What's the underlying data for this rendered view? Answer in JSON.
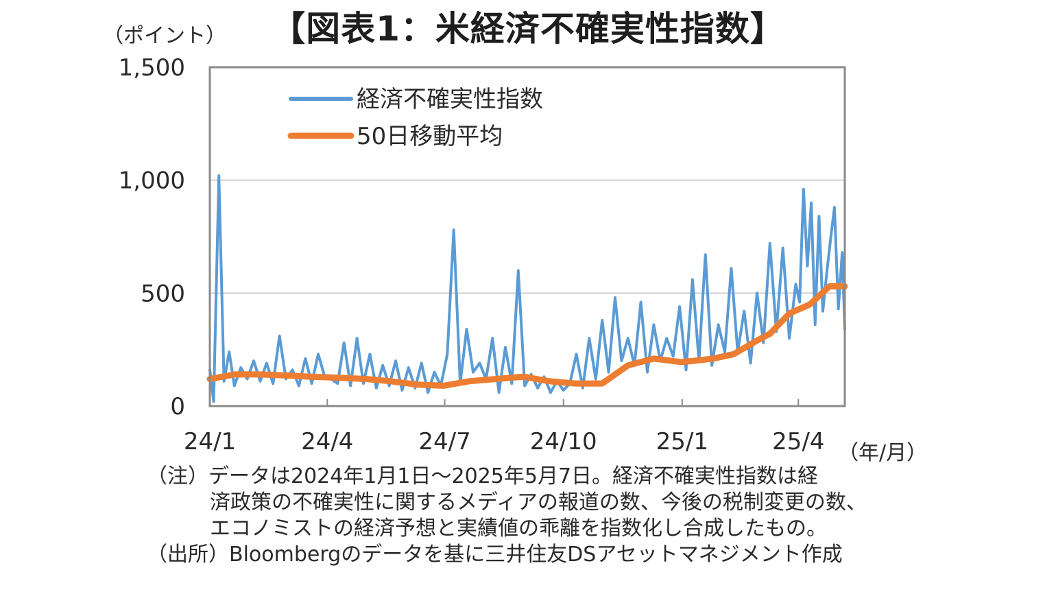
{
  "title": "【図表1：米経済不確実性指数】",
  "notes": {
    "line1": "（注）データは2024年1月1日～2025年5月7日。経済不確実性指数は経",
    "line2": "済政策の不確実性に関するメディアの報道の数、今後の税制変更の数、",
    "line3": "エコノミストの経済予想と実績値の乖離を指数化し合成したもの。",
    "line4": "（出所）Bloombergのデータを基に三井住友DSアセットマネジメント作成"
  },
  "chart_data": {
    "type": "line",
    "title": "【図表1：米経済不確実性指数】",
    "ylabel": "（ポイント）",
    "xlabel": "（年/月）",
    "ylim": [
      0,
      1500
    ],
    "yticks": [
      0,
      500,
      1000,
      1500
    ],
    "ytick_labels": [
      "0",
      "500",
      "1,000",
      "1,500"
    ],
    "x_range": [
      "2024-01-01",
      "2025-05-07"
    ],
    "xticks": [
      "2024-01-01",
      "2024-04-01",
      "2024-07-01",
      "2024-10-01",
      "2025-01-01",
      "2025-04-01"
    ],
    "xtick_labels": [
      "24/1",
      "24/4",
      "24/7",
      "24/10",
      "25/1",
      "25/4"
    ],
    "grid": "horizontal",
    "legend_position": "top-left",
    "series": [
      {
        "name": "経済不確実性指数",
        "color": "#5b9bd5",
        "x": [
          "2024-01-01",
          "2024-01-04",
          "2024-01-08",
          "2024-01-12",
          "2024-01-16",
          "2024-01-20",
          "2024-01-25",
          "2024-01-30",
          "2024-02-04",
          "2024-02-09",
          "2024-02-14",
          "2024-02-19",
          "2024-02-24",
          "2024-02-29",
          "2024-03-05",
          "2024-03-10",
          "2024-03-15",
          "2024-03-20",
          "2024-03-25",
          "2024-03-30",
          "2024-04-04",
          "2024-04-09",
          "2024-04-14",
          "2024-04-19",
          "2024-04-24",
          "2024-04-29",
          "2024-05-04",
          "2024-05-09",
          "2024-05-14",
          "2024-05-19",
          "2024-05-24",
          "2024-05-29",
          "2024-06-03",
          "2024-06-08",
          "2024-06-13",
          "2024-06-18",
          "2024-06-23",
          "2024-06-28",
          "2024-07-03",
          "2024-07-08",
          "2024-07-13",
          "2024-07-18",
          "2024-07-23",
          "2024-07-28",
          "2024-08-02",
          "2024-08-07",
          "2024-08-12",
          "2024-08-17",
          "2024-08-22",
          "2024-08-27",
          "2024-09-01",
          "2024-09-06",
          "2024-09-11",
          "2024-09-16",
          "2024-09-21",
          "2024-09-26",
          "2024-10-01",
          "2024-10-06",
          "2024-10-11",
          "2024-10-16",
          "2024-10-21",
          "2024-10-26",
          "2024-10-31",
          "2024-11-05",
          "2024-11-10",
          "2024-11-15",
          "2024-11-20",
          "2024-11-25",
          "2024-11-30",
          "2024-12-05",
          "2024-12-10",
          "2024-12-15",
          "2024-12-20",
          "2024-12-25",
          "2024-12-30",
          "2025-01-04",
          "2025-01-09",
          "2025-01-14",
          "2025-01-19",
          "2025-01-24",
          "2025-01-29",
          "2025-02-03",
          "2025-02-08",
          "2025-02-13",
          "2025-02-18",
          "2025-02-23",
          "2025-02-28",
          "2025-03-05",
          "2025-03-10",
          "2025-03-15",
          "2025-03-20",
          "2025-03-25",
          "2025-03-30",
          "2025-04-02",
          "2025-04-05",
          "2025-04-08",
          "2025-04-11",
          "2025-04-14",
          "2025-04-17",
          "2025-04-20",
          "2025-04-23",
          "2025-04-26",
          "2025-04-29",
          "2025-05-02",
          "2025-05-05",
          "2025-05-07"
        ],
        "values": [
          160,
          20,
          1020,
          110,
          240,
          90,
          170,
          120,
          200,
          110,
          190,
          100,
          310,
          120,
          160,
          90,
          210,
          100,
          230,
          130,
          120,
          100,
          280,
          90,
          300,
          100,
          230,
          80,
          180,
          90,
          200,
          70,
          170,
          80,
          190,
          60,
          150,
          90,
          230,
          780,
          100,
          340,
          150,
          190,
          120,
          300,
          60,
          260,
          100,
          600,
          90,
          140,
          80,
          130,
          60,
          110,
          70,
          100,
          230,
          80,
          300,
          120,
          380,
          150,
          480,
          200,
          300,
          180,
          460,
          150,
          360,
          200,
          300,
          220,
          440,
          160,
          560,
          200,
          670,
          180,
          360,
          240,
          610,
          240,
          420,
          190,
          500,
          280,
          720,
          330,
          700,
          300,
          540,
          460,
          960,
          620,
          900,
          360,
          840,
          420,
          590,
          740,
          880,
          430,
          680,
          340
        ]
      },
      {
        "name": "50日移動平均",
        "color": "#ed7d31",
        "x": [
          "2024-01-01",
          "2024-01-20",
          "2024-02-10",
          "2024-03-01",
          "2024-03-20",
          "2024-04-10",
          "2024-05-01",
          "2024-05-20",
          "2024-06-10",
          "2024-06-30",
          "2024-07-20",
          "2024-08-10",
          "2024-08-31",
          "2024-09-20",
          "2024-10-10",
          "2024-10-31",
          "2024-11-20",
          "2024-12-10",
          "2024-12-31",
          "2025-01-10",
          "2025-01-25",
          "2025-02-10",
          "2025-02-28",
          "2025-03-10",
          "2025-03-25",
          "2025-04-10",
          "2025-04-25",
          "2025-05-07"
        ],
        "values": [
          120,
          140,
          140,
          135,
          130,
          125,
          120,
          110,
          95,
          90,
          110,
          120,
          130,
          110,
          100,
          100,
          180,
          210,
          195,
          200,
          210,
          230,
          290,
          320,
          410,
          450,
          530,
          530
        ]
      }
    ]
  }
}
